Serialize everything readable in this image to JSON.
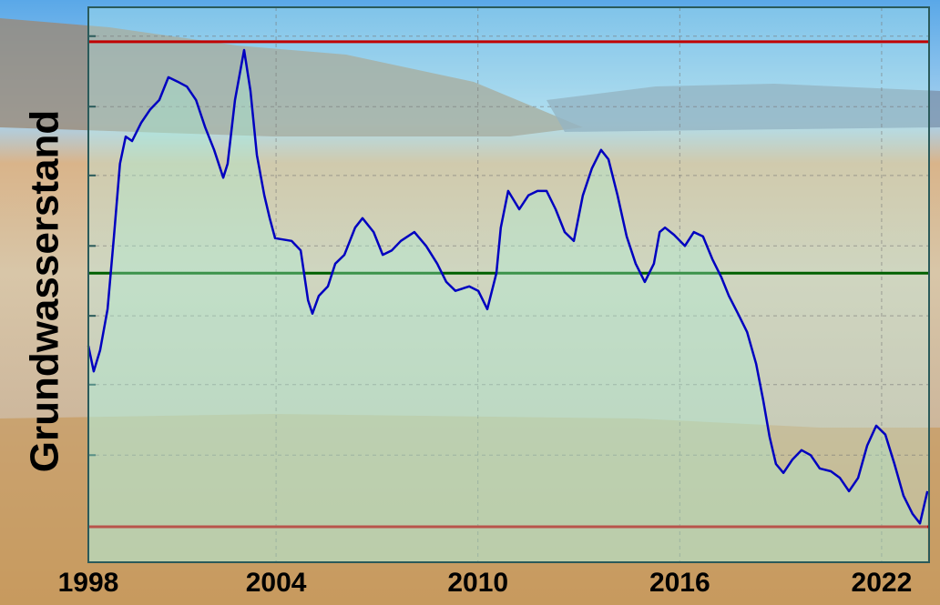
{
  "chart_data": {
    "type": "line",
    "ylabel": "Grundwasserstand",
    "xlim": [
      1998.42,
      2023.41
    ],
    "xticks": [
      1998,
      2004,
      2010,
      2016,
      2022
    ],
    "ylim": [
      0,
      100
    ],
    "yticks": [
      19.3,
      32.0,
      44.4,
      57.0,
      69.7,
      82.1,
      94.8
    ],
    "grid": true,
    "reference_lines": [
      {
        "value": 93.8,
        "color": "#c00000"
      },
      {
        "value": 52.1,
        "color": "#006000"
      },
      {
        "value": 6.4,
        "color": "#c00000"
      }
    ],
    "series": [
      {
        "color": "#0000c0",
        "x": [
          1998.42,
          1998.58,
          1998.77,
          1998.99,
          1999.18,
          1999.36,
          1999.53,
          1999.72,
          1999.99,
          2000.26,
          2000.53,
          2000.8,
          2001.07,
          2001.35,
          2001.62,
          2001.89,
          2002.16,
          2002.43,
          2002.56,
          2002.78,
          2003.05,
          2003.24,
          2003.43,
          2003.65,
          2003.81,
          2003.97,
          2004.46,
          2004.73,
          2004.95,
          2005.08,
          2005.27,
          2005.54,
          2005.76,
          2006.03,
          2006.35,
          2006.57,
          2006.9,
          2007.17,
          2007.44,
          2007.71,
          2008.11,
          2008.46,
          2008.79,
          2009.06,
          2009.33,
          2009.74,
          2010.01,
          2010.28,
          2010.55,
          2010.68,
          2010.9,
          2011.23,
          2011.5,
          2011.77,
          2012.04,
          2012.31,
          2012.58,
          2012.85,
          2013.12,
          2013.39,
          2013.66,
          2013.88,
          2014.15,
          2014.42,
          2014.69,
          2014.96,
          2015.23,
          2015.4,
          2015.56,
          2015.83,
          2016.15,
          2016.42,
          2016.69,
          2016.97,
          2017.24,
          2017.46,
          2017.73,
          2018.0,
          2018.27,
          2018.48,
          2018.67,
          2018.86,
          2019.08,
          2019.35,
          2019.62,
          2019.89,
          2020.16,
          2020.49,
          2020.76,
          2021.03,
          2021.3,
          2021.57,
          2021.84,
          2022.11,
          2022.38,
          2022.65,
          2022.92,
          2023.14,
          2023.36
        ],
        "values": [
          39.0,
          34.4,
          38.2,
          45.6,
          58.7,
          71.8,
          76.7,
          75.9,
          79.2,
          81.6,
          83.3,
          87.4,
          86.6,
          85.7,
          83.3,
          78.4,
          74.3,
          69.3,
          71.8,
          83.3,
          92.3,
          84.9,
          73.4,
          66.1,
          62.0,
          58.4,
          57.9,
          56.2,
          47.2,
          44.8,
          48.0,
          49.7,
          53.8,
          55.4,
          60.3,
          62.0,
          59.5,
          55.4,
          56.2,
          57.9,
          59.5,
          57.0,
          53.8,
          50.5,
          48.9,
          49.7,
          48.9,
          45.6,
          52.1,
          60.3,
          66.9,
          63.6,
          66.1,
          66.9,
          66.9,
          63.6,
          59.5,
          57.9,
          66.1,
          71.0,
          74.3,
          72.6,
          66.1,
          58.7,
          53.8,
          50.5,
          53.8,
          59.5,
          60.3,
          59.0,
          57.0,
          59.5,
          58.7,
          54.6,
          51.3,
          48.0,
          44.8,
          41.5,
          35.7,
          29.2,
          22.6,
          17.7,
          16.1,
          18.5,
          20.2,
          19.3,
          16.9,
          16.4,
          15.2,
          12.8,
          15.2,
          21.0,
          24.6,
          23.0,
          17.7,
          12.0,
          8.7,
          7.0,
          12.8
        ]
      }
    ]
  }
}
